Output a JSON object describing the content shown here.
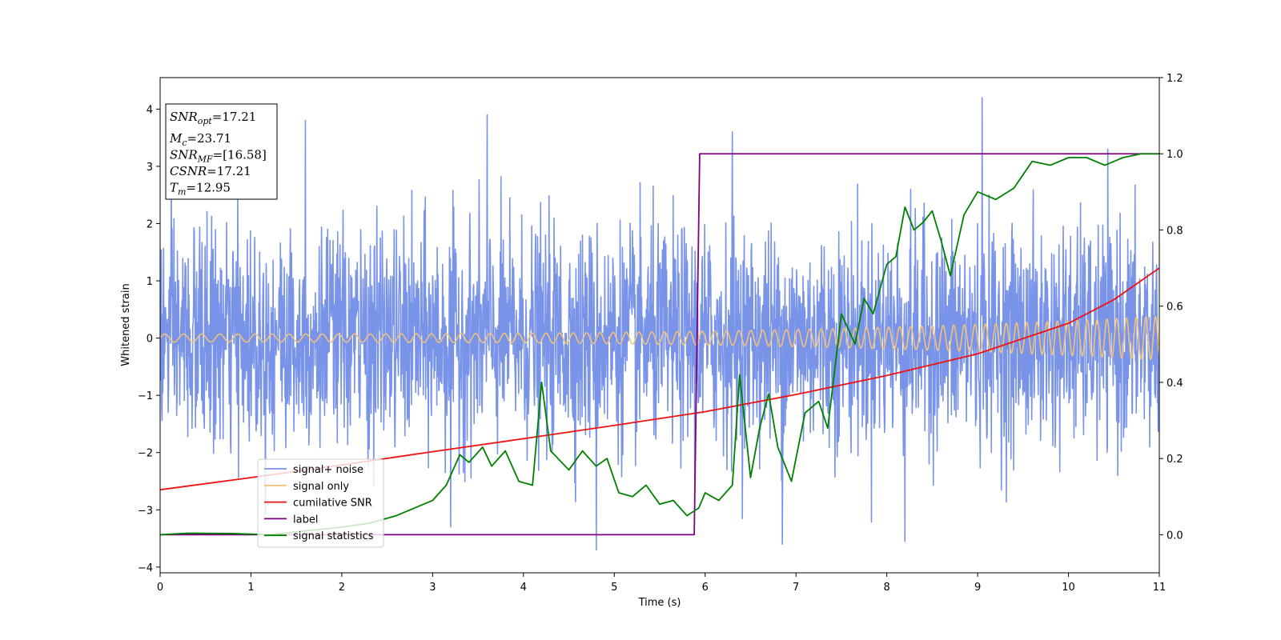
{
  "chart_data": {
    "type": "line",
    "title": "",
    "xlabel": "Time (s)",
    "ylabel": "Whitened strain",
    "xlim": [
      0,
      11
    ],
    "ylim": [
      -4.1,
      4.55
    ],
    "y2lim": [
      -0.1,
      1.2
    ],
    "xticks": [
      0,
      1,
      2,
      3,
      4,
      5,
      6,
      7,
      8,
      9,
      10,
      11
    ],
    "yticks": [
      -4,
      -3,
      -2,
      -1,
      0,
      1,
      2,
      3,
      4
    ],
    "y2ticks": [
      "0.0",
      "0.2",
      "0.4",
      "0.6",
      "0.8",
      "1.0",
      "1.2"
    ],
    "grid": false,
    "legend_position": "lower-left",
    "annotation": {
      "lines": [
        {
          "var": "SNR",
          "sub": "opt",
          "value": "=17.21"
        },
        {
          "var": "M",
          "sub": "c",
          "value": "=23.71"
        },
        {
          "var": "SNR",
          "sub": "MF",
          "value": "=[16.58]"
        },
        {
          "var": "CSNR",
          "sub": "",
          "value": "=17.21"
        },
        {
          "var": "T",
          "sub": "m",
          "value": "=12.95"
        }
      ]
    },
    "series": [
      {
        "name": "signal+ noise",
        "color": "#7893e8",
        "axis": "left",
        "kind": "noise",
        "noise_std": 0.95,
        "noise_peaks": [
          [
            1.6,
            3.8
          ],
          [
            3.6,
            3.9
          ],
          [
            4.8,
            -3.7
          ],
          [
            6.3,
            3.6
          ],
          [
            9.05,
            4.2
          ],
          [
            8.2,
            -3.55
          ],
          [
            6.85,
            -3.6
          ],
          [
            3.2,
            -3.3
          ]
        ]
      },
      {
        "name": "signal only",
        "color": "#f2c27a",
        "axis": "left",
        "kind": "chirp",
        "amp_start": 0.07,
        "amp_end": 0.38,
        "freq_start": 4.8,
        "freq_end": 9.5
      },
      {
        "name": "cumilative SNR",
        "color": "#ee1111",
        "axis": "right",
        "x": [
          0,
          1,
          2,
          3,
          4,
          5,
          6,
          7,
          8,
          9,
          10,
          10.5,
          11
        ],
        "values": [
          0.118,
          0.15,
          0.183,
          0.218,
          0.252,
          0.287,
          0.323,
          0.368,
          0.418,
          0.475,
          0.555,
          0.617,
          0.7
        ]
      },
      {
        "name": "label",
        "color": "#800080",
        "axis": "right",
        "x": [
          0,
          5.88,
          5.94,
          11
        ],
        "values": [
          0,
          0,
          1,
          1
        ]
      },
      {
        "name": "signal statistics",
        "color": "#008000",
        "axis": "right",
        "x": [
          0,
          0.3,
          0.8,
          1.2,
          2.0,
          2.3,
          2.6,
          2.8,
          3.0,
          3.15,
          3.3,
          3.4,
          3.55,
          3.65,
          3.8,
          3.95,
          4.1,
          4.2,
          4.3,
          4.5,
          4.65,
          4.8,
          4.92,
          5.05,
          5.2,
          5.35,
          5.5,
          5.65,
          5.8,
          5.93,
          6.0,
          6.15,
          6.3,
          6.38,
          6.5,
          6.6,
          6.7,
          6.8,
          6.95,
          7.1,
          7.25,
          7.35,
          7.5,
          7.65,
          7.75,
          7.85,
          8.0,
          8.1,
          8.2,
          8.3,
          8.4,
          8.5,
          8.6,
          8.7,
          8.85,
          9.0,
          9.2,
          9.4,
          9.6,
          9.8,
          10.0,
          10.2,
          10.4,
          10.6,
          10.8,
          11.0
        ],
        "values": [
          0.0,
          0.004,
          0.003,
          0.0,
          0.02,
          0.03,
          0.05,
          0.07,
          0.09,
          0.13,
          0.21,
          0.19,
          0.23,
          0.18,
          0.22,
          0.14,
          0.13,
          0.4,
          0.22,
          0.17,
          0.22,
          0.18,
          0.2,
          0.11,
          0.1,
          0.13,
          0.08,
          0.09,
          0.05,
          0.07,
          0.11,
          0.09,
          0.13,
          0.42,
          0.15,
          0.28,
          0.37,
          0.23,
          0.14,
          0.32,
          0.35,
          0.28,
          0.58,
          0.5,
          0.62,
          0.58,
          0.71,
          0.73,
          0.86,
          0.8,
          0.82,
          0.85,
          0.77,
          0.68,
          0.84,
          0.9,
          0.88,
          0.91,
          0.98,
          0.97,
          0.99,
          0.99,
          0.97,
          0.99,
          1.0,
          1.0
        ]
      }
    ]
  }
}
